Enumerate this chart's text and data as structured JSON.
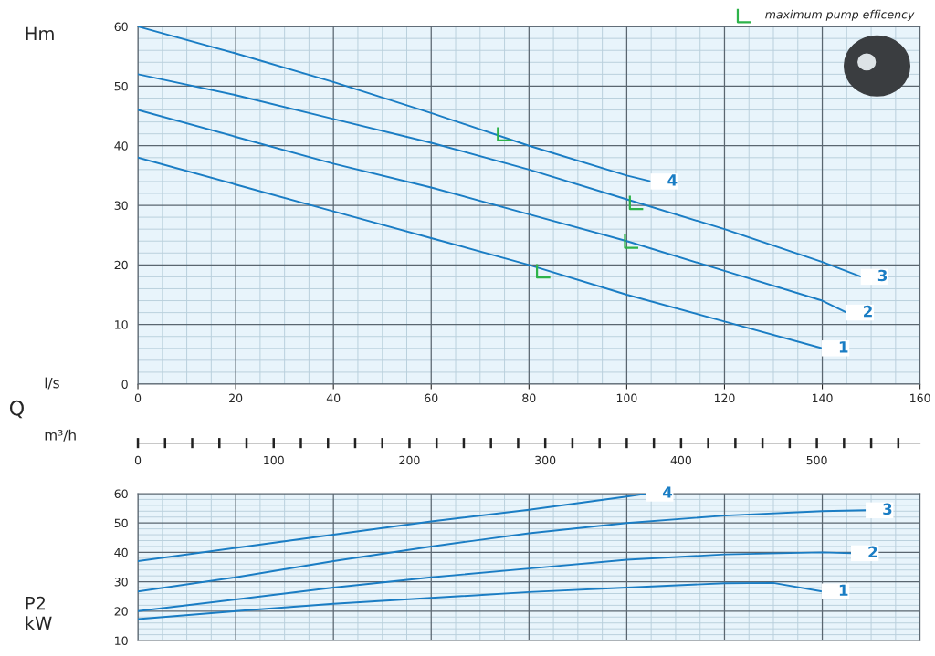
{
  "chart_data": [
    {
      "type": "line",
      "ylabel": "Hm",
      "xlabel": "l/s",
      "x2label": "m³/h",
      "annotations": [
        "Q"
      ],
      "legend": "top right",
      "grid": true,
      "xlim": [
        0,
        160
      ],
      "xticks": [
        0,
        20,
        40,
        60,
        80,
        100,
        120,
        140,
        160
      ],
      "ylim": [
        0,
        60
      ],
      "yticks": [
        0,
        10,
        20,
        30,
        40,
        50,
        60
      ],
      "x2lim": [
        0,
        576
      ],
      "x2ticks": [
        0,
        100,
        200,
        300,
        400,
        500
      ],
      "series": [
        {
          "name": "1",
          "color": "#1a7dc4",
          "x": [
            0,
            20,
            40,
            60,
            80,
            100,
            120,
            140
          ],
          "values": [
            38,
            33.5,
            29,
            24.5,
            20,
            15,
            10.5,
            6
          ]
        },
        {
          "name": "2",
          "color": "#1a7dc4",
          "x": [
            0,
            20,
            40,
            60,
            80,
            100,
            120,
            140,
            145
          ],
          "values": [
            46,
            41.5,
            37,
            33,
            28.5,
            24,
            19,
            14,
            12
          ]
        },
        {
          "name": "3",
          "color": "#1a7dc4",
          "x": [
            0,
            20,
            40,
            60,
            80,
            100,
            120,
            140,
            148
          ],
          "values": [
            52,
            48.5,
            44.5,
            40.5,
            36,
            31,
            26,
            20.5,
            18
          ]
        },
        {
          "name": "4",
          "color": "#1a7dc4",
          "x": [
            0,
            20,
            40,
            60,
            80,
            100,
            105
          ],
          "values": [
            60,
            55.5,
            50.7,
            45.5,
            40,
            35,
            34
          ]
        },
        {
          "name": "maximum pump efficency",
          "type": "scatter",
          "color": "#2db34a",
          "x": [
            83,
            101,
            102,
            75
          ],
          "values": [
            19,
            24,
            30.5,
            42
          ]
        }
      ]
    },
    {
      "type": "line",
      "ylabel": "P2\nkW",
      "grid": true,
      "tick_labels": "y",
      "xlim": [
        0,
        160
      ],
      "xticks": [
        0,
        20,
        40,
        60,
        80,
        100,
        120,
        140,
        160
      ],
      "ylim": [
        10,
        60
      ],
      "yticks": [
        10,
        20,
        30,
        40,
        50,
        60
      ],
      "series": [
        {
          "name": "1",
          "color": "#1a7dc4",
          "x": [
            0,
            20,
            40,
            60,
            80,
            100,
            120,
            130,
            140
          ],
          "values": [
            17.3,
            20,
            22.5,
            24.5,
            26.5,
            28,
            29.5,
            29.6,
            26.7
          ]
        },
        {
          "name": "2",
          "color": "#1a7dc4",
          "x": [
            0,
            20,
            40,
            60,
            80,
            100,
            120,
            140,
            146
          ],
          "values": [
            20,
            24,
            28,
            31.5,
            34.5,
            37.5,
            39.3,
            40,
            39.7
          ]
        },
        {
          "name": "3",
          "color": "#1a7dc4",
          "x": [
            0,
            20,
            40,
            60,
            80,
            100,
            120,
            140,
            149
          ],
          "values": [
            26.7,
            31.5,
            37,
            42,
            46.5,
            50,
            52.5,
            54,
            54.3
          ]
        },
        {
          "name": "4",
          "color": "#1a7dc4",
          "x": [
            0,
            20,
            40,
            60,
            80,
            100,
            104
          ],
          "values": [
            37,
            41.5,
            46,
            50.5,
            54.5,
            59,
            60
          ]
        }
      ]
    }
  ]
}
